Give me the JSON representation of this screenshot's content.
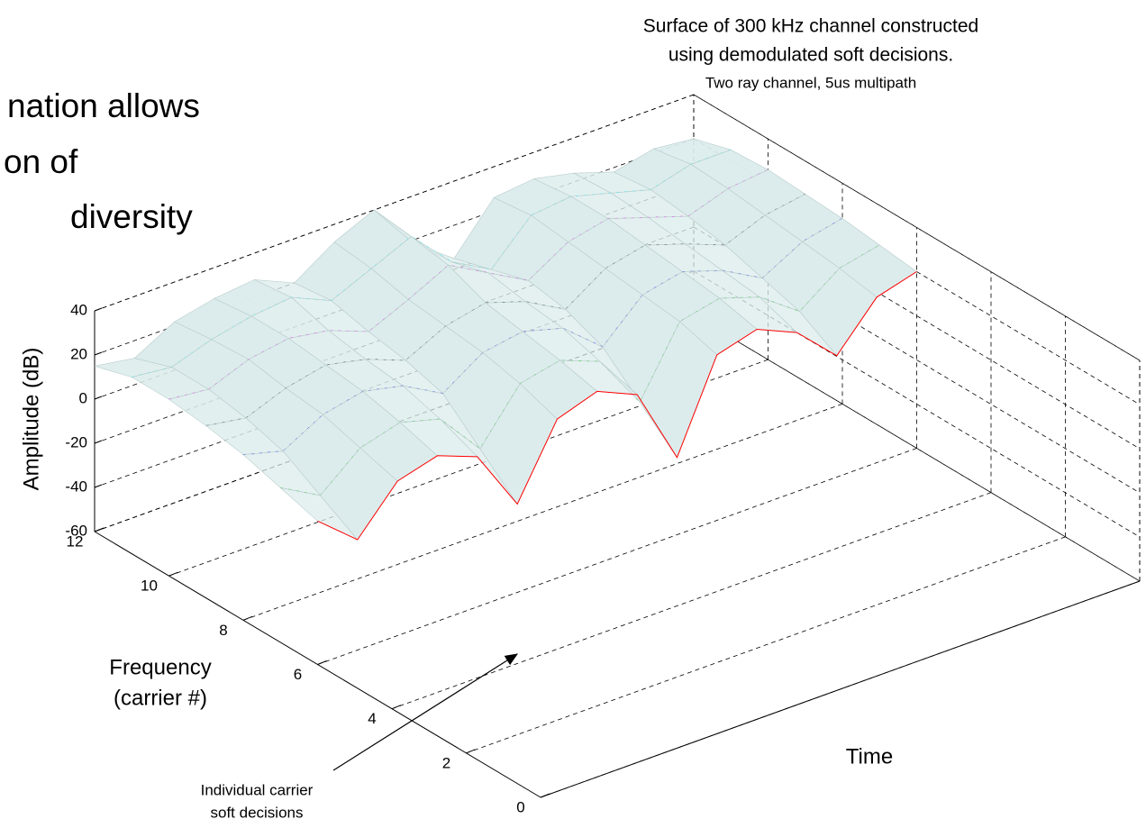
{
  "slide_text": [
    "nation allows",
    "on of",
    "diversity"
  ],
  "chart_data": {
    "type": "surface",
    "title": [
      "Surface of 300 kHz channel constructed",
      "using demodulated soft decisions."
    ],
    "subtitle": "Two ray channel, 5us multipath",
    "zlabel": "Amplitude (dB)",
    "ylabel": [
      "Frequency",
      "(carrier #)"
    ],
    "xlabel": "Time",
    "annotation": [
      "Individual carrier",
      "soft decisions"
    ],
    "zlim": [
      -60,
      40
    ],
    "zticks": [
      -60,
      -40,
      -20,
      0,
      20,
      40
    ],
    "ylim": [
      0,
      12
    ],
    "yticks": [
      0,
      2,
      4,
      6,
      8,
      10,
      12
    ],
    "y": [
      6,
      7,
      8,
      9,
      10,
      11,
      12
    ],
    "z": [
      [
        5,
        -10,
        10,
        15,
        8,
        -20,
        12,
        18,
        10,
        -25,
        15,
        20,
        12,
        -5,
        15,
        20
      ],
      [
        10,
        0,
        15,
        20,
        15,
        -5,
        18,
        22,
        15,
        -10,
        20,
        24,
        18,
        5,
        18,
        22
      ],
      [
        15,
        10,
        20,
        24,
        20,
        10,
        22,
        25,
        20,
        5,
        22,
        26,
        20,
        10,
        20,
        24
      ],
      [
        18,
        15,
        22,
        26,
        22,
        15,
        24,
        28,
        22,
        12,
        24,
        28,
        22,
        15,
        22,
        25
      ],
      [
        20,
        18,
        25,
        28,
        25,
        18,
        26,
        35,
        25,
        15,
        26,
        30,
        24,
        18,
        24,
        26
      ],
      [
        20,
        18,
        24,
        28,
        30,
        22,
        30,
        38,
        20,
        10,
        28,
        30,
        25,
        20,
        25,
        25
      ],
      [
        15,
        12,
        22,
        26,
        28,
        20,
        32,
        40,
        18,
        5,
        26,
        28,
        24,
        18,
        22,
        20
      ]
    ],
    "color": "#dcecec",
    "grid": true
  }
}
